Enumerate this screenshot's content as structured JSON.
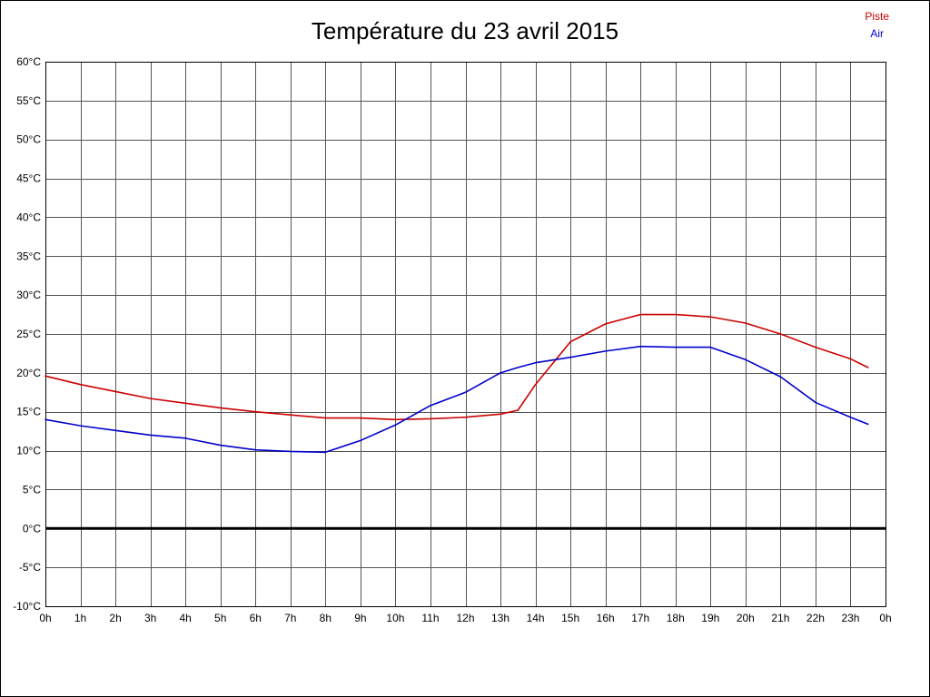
{
  "title": "Température du 23 avril 2015",
  "legend": [
    {
      "label": "Piste",
      "color": "#cc0000"
    },
    {
      "label": "Air",
      "color": "#0000cc"
    }
  ],
  "chart_data": {
    "type": "line",
    "title": "Température du 23 avril 2015",
    "xlabel": "",
    "ylabel": "",
    "ylim": [
      -10,
      60
    ],
    "ytick_step": 5,
    "ytick_suffix": "°C",
    "grid": true,
    "zero_line": true,
    "legend_position": "top-right",
    "colors": {
      "grid": "#555555",
      "axis": "#000000",
      "zero_line": "#000000",
      "background": "#ffffff"
    },
    "x_tick_labels": [
      "0h",
      "1h",
      "2h",
      "3h",
      "4h",
      "5h",
      "6h",
      "7h",
      "8h",
      "9h",
      "10h",
      "11h",
      "12h",
      "13h",
      "14h",
      "15h",
      "16h",
      "17h",
      "18h",
      "19h",
      "20h",
      "21h",
      "22h",
      "23h",
      "0h"
    ],
    "x": [
      0,
      1,
      2,
      3,
      4,
      5,
      6,
      7,
      8,
      9,
      10,
      11,
      12,
      13,
      13.5,
      14,
      15,
      16,
      17,
      18,
      19,
      20,
      21,
      22,
      23,
      23.5
    ],
    "series": [
      {
        "name": "Piste",
        "color": "#cc0000",
        "values": [
          19.6,
          18.5,
          17.6,
          16.7,
          16.1,
          15.5,
          15.0,
          14.6,
          14.2,
          14.2,
          14.0,
          14.1,
          14.3,
          14.7,
          15.2,
          18.5,
          24.0,
          26.3,
          27.5,
          27.5,
          27.2,
          26.4,
          25.0,
          23.3,
          21.8,
          20.7
        ]
      },
      {
        "name": "Air",
        "color": "#0000cc",
        "values": [
          14.0,
          13.2,
          12.6,
          12.0,
          11.6,
          10.7,
          10.1,
          9.9,
          9.8,
          11.3,
          13.3,
          15.8,
          17.5,
          20.0,
          20.7,
          21.3,
          22.0,
          22.8,
          23.4,
          23.3,
          23.3,
          21.7,
          19.5,
          16.2,
          14.3,
          13.4
        ]
      }
    ]
  }
}
